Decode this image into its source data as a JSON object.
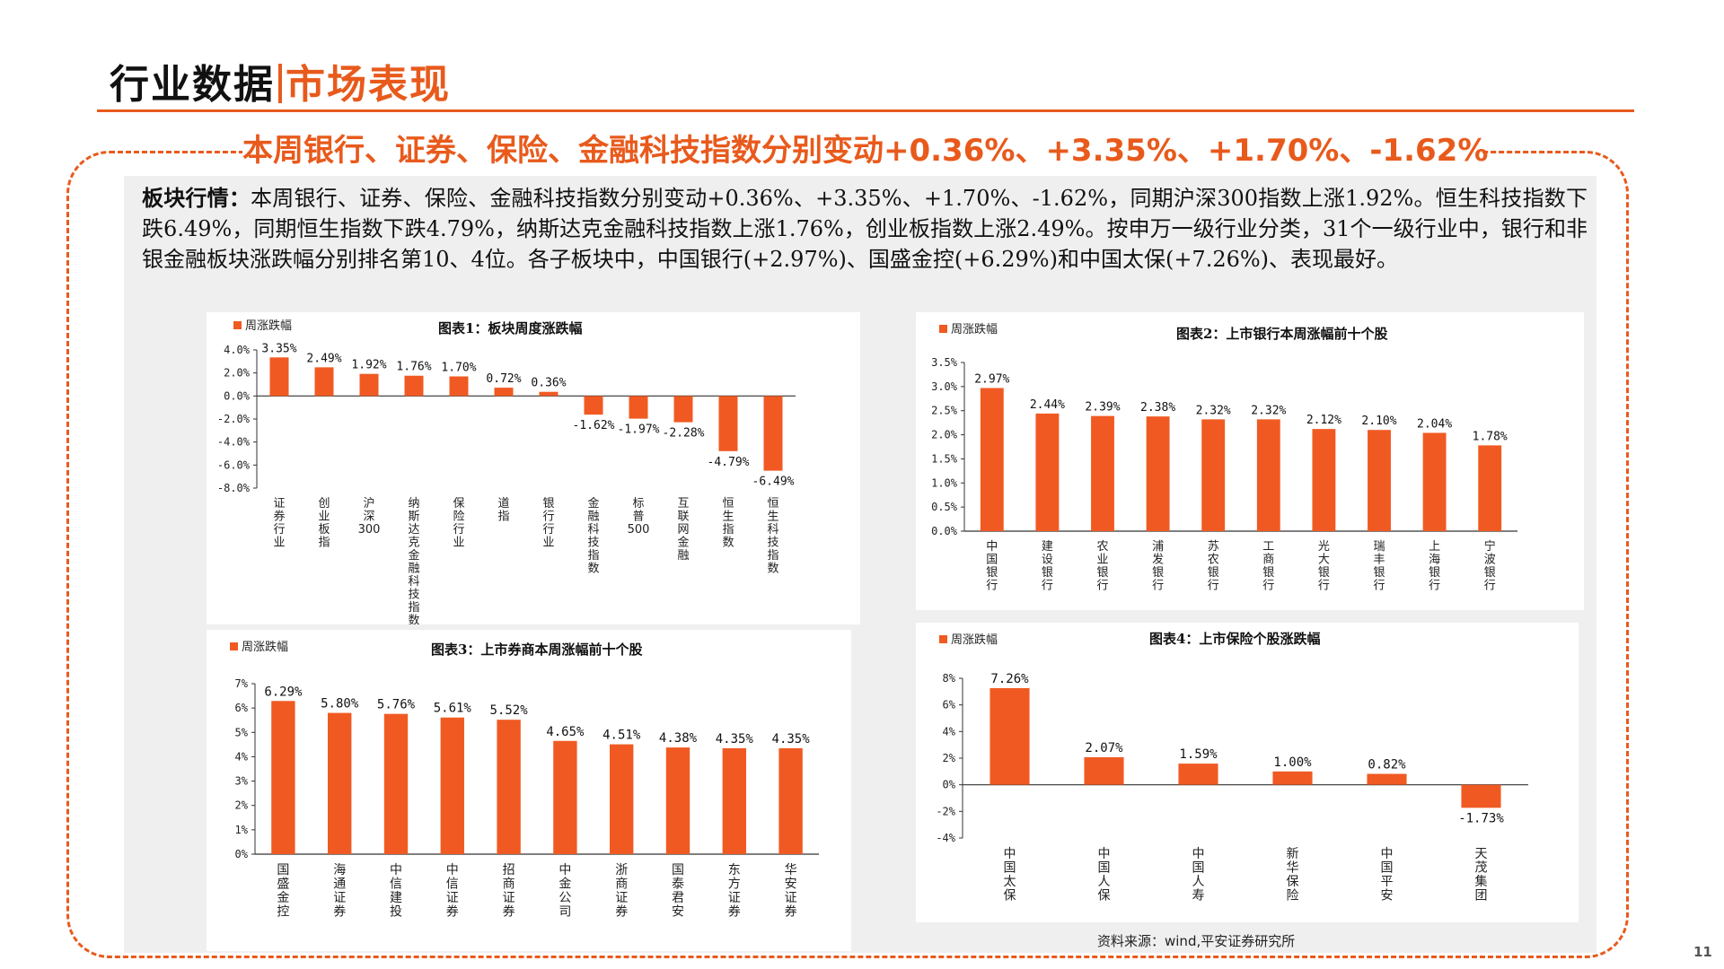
{
  "header": {
    "title_part1": "行业数据",
    "title_part2": "市场表现"
  },
  "headline": "本周银行、证券、保险、金融科技指数分别变动+0.36%、+3.35%、+1.70%、-1.62%",
  "summary": {
    "label": "板块行情：",
    "text": "本周银行、证券、保险、金融科技指数分别变动+0.36%、+3.35%、+1.70%、-1.62%，同期沪深300指数上涨1.92%。恒生科技指数下跌6.49%，同期恒生指数下跌4.79%，纳斯达克金融科技指数上涨1.76%，创业板指数上涨2.49%。按申万一级行业分类，31个一级行业中，银行和非银金融板块涨跌幅分别排名第10、4位。各子板块中，中国银行(+2.97%)、国盛金控(+6.29%)和中国太保(+7.26%)、表现最好。"
  },
  "colors": {
    "accent": "#e85a1c",
    "bar": "#f05a22"
  },
  "source": "资料来源：wind,平安证券研究所",
  "page_number": "11",
  "chart_data": [
    {
      "id": "chart1",
      "type": "bar",
      "title": "图表1：板块周度涨跌幅",
      "legend": "周涨跌幅",
      "legend_position": "top-left",
      "categories": [
        "证券行业",
        "创业板指",
        "沪深300",
        "纳斯达克金融科技指数",
        "保险行业",
        "道指",
        "银行行业",
        "金融科技指数",
        "标普500",
        "互联网金融",
        "恒生指数",
        "恒生科技指数"
      ],
      "values": [
        3.35,
        2.49,
        1.92,
        1.76,
        1.7,
        0.72,
        0.36,
        -1.62,
        -1.97,
        -2.28,
        -4.79,
        -6.49
      ],
      "labels": [
        "3.35%",
        "2.49%",
        "1.92%",
        "1.76%",
        "1.70%",
        "0.72%",
        "0.36%",
        "-1.62%",
        "-1.97%",
        "-2.28%",
        "-4.79%",
        "-6.49%"
      ],
      "yticks": [
        "4.0%",
        "2.0%",
        "0.0%",
        "-2.0%",
        "-4.0%",
        "-6.0%",
        "-8.0%"
      ],
      "ylim": [
        -8,
        4
      ],
      "grid": false
    },
    {
      "id": "chart2",
      "type": "bar",
      "title": "图表2：上市银行本周涨幅前十个股",
      "legend": "周涨跌幅",
      "legend_position": "top-left",
      "categories": [
        "中国银行",
        "建设银行",
        "农业银行",
        "浦发银行",
        "苏农银行",
        "工商银行",
        "光大银行",
        "瑞丰银行",
        "上海银行",
        "宁波银行"
      ],
      "values": [
        2.97,
        2.44,
        2.39,
        2.38,
        2.32,
        2.32,
        2.12,
        2.1,
        2.04,
        1.78
      ],
      "labels": [
        "2.97%",
        "2.44%",
        "2.39%",
        "2.38%",
        "2.32%",
        "2.32%",
        "2.12%",
        "2.10%",
        "2.04%",
        "1.78%"
      ],
      "yticks": [
        "3.5%",
        "3.0%",
        "2.5%",
        "2.0%",
        "1.5%",
        "1.0%",
        "0.5%",
        "0.0%"
      ],
      "ylim": [
        0,
        3.5
      ],
      "grid": false
    },
    {
      "id": "chart3",
      "type": "bar",
      "title": "图表3：上市券商本周涨幅前十个股",
      "legend": "周涨跌幅",
      "legend_position": "top-left",
      "categories": [
        "国盛金控",
        "海通证券",
        "中信建投",
        "中信证券",
        "招商证券",
        "中金公司",
        "浙商证券",
        "国泰君安",
        "东方证券",
        "华安证券"
      ],
      "values": [
        6.29,
        5.8,
        5.76,
        5.61,
        5.52,
        4.65,
        4.51,
        4.38,
        4.35,
        4.35
      ],
      "labels": [
        "6.29%",
        "5.80%",
        "5.76%",
        "5.61%",
        "5.52%",
        "4.65%",
        "4.51%",
        "4.38%",
        "4.35%",
        "4.35%"
      ],
      "yticks": [
        "7%",
        "6%",
        "5%",
        "4%",
        "3%",
        "2%",
        "1%",
        "0%"
      ],
      "ylim": [
        0,
        7
      ],
      "grid": false
    },
    {
      "id": "chart4",
      "type": "bar",
      "title": "图表4：上市保险个股涨跌幅",
      "legend": "周涨跌幅",
      "legend_position": "top-left",
      "categories": [
        "中国太保",
        "中国人保",
        "中国人寿",
        "新华保险",
        "中国平安",
        "天茂集团"
      ],
      "values": [
        7.26,
        2.07,
        1.59,
        1.0,
        0.82,
        -1.73
      ],
      "labels": [
        "7.26%",
        "2.07%",
        "1.59%",
        "1.00%",
        "0.82%",
        "-1.73%"
      ],
      "yticks": [
        "8%",
        "6%",
        "4%",
        "2%",
        "0%",
        "-2%",
        "-4%"
      ],
      "ylim": [
        -4,
        8
      ],
      "grid": false
    }
  ]
}
